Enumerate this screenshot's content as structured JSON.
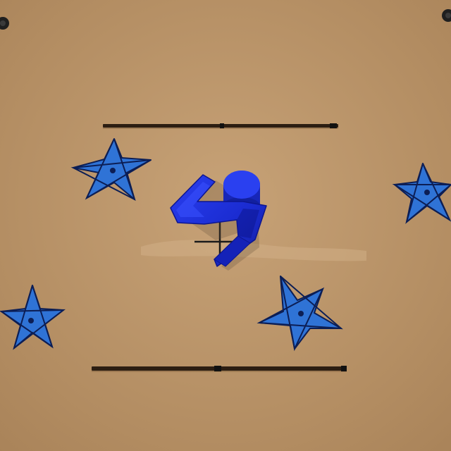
{
  "scene": {
    "surface": "cardboard",
    "object": "blue-3d-printed-bracket",
    "colors": {
      "cardboard": "#b58f64",
      "cardboard_light": "#c29c70",
      "star_fill": "#2f73d6",
      "star_outline": "#0c1e55",
      "bracket": "#1c2fd8",
      "bracket_shadow": "#0d168f",
      "slot": "#2c1e12",
      "screw": "#1f1f1f"
    }
  }
}
